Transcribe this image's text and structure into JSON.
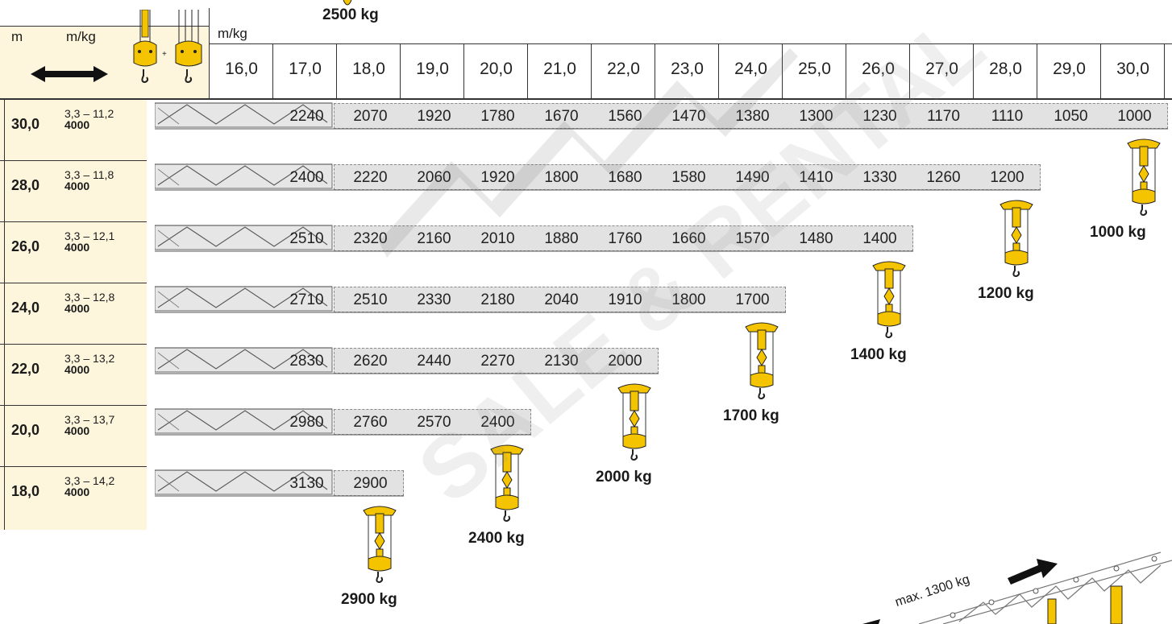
{
  "header": {
    "col_m": "m",
    "col_mkg": "m/kg",
    "plus": "+",
    "radius_unit": "m/kg",
    "radii": [
      "16,0",
      "17,0",
      "18,0",
      "19,0",
      "20,0",
      "21,0",
      "22,0",
      "23,0",
      "24,0",
      "25,0",
      "26,0",
      "27,0",
      "28,0",
      "29,0",
      "30,0"
    ]
  },
  "top_label": "2500 kg",
  "rows": [
    {
      "length": "30,0",
      "range": "3,3 – 11,2",
      "max": "4000",
      "loads": [
        "2240",
        "2070",
        "1920",
        "1780",
        "1670",
        "1560",
        "1470",
        "1380",
        "1300",
        "1230",
        "1170",
        "1110",
        "1050",
        "1000"
      ]
    },
    {
      "length": "28,0",
      "range": "3,3 – 11,8",
      "max": "4000",
      "loads": [
        "2400",
        "2220",
        "2060",
        "1920",
        "1800",
        "1680",
        "1580",
        "1490",
        "1410",
        "1330",
        "1260",
        "1200"
      ]
    },
    {
      "length": "26,0",
      "range": "3,3 – 12,1",
      "max": "4000",
      "loads": [
        "2510",
        "2320",
        "2160",
        "2010",
        "1880",
        "1760",
        "1660",
        "1570",
        "1480",
        "1400"
      ]
    },
    {
      "length": "24,0",
      "range": "3,3 – 12,8",
      "max": "4000",
      "loads": [
        "2710",
        "2510",
        "2330",
        "2180",
        "2040",
        "1910",
        "1800",
        "1700"
      ]
    },
    {
      "length": "22,0",
      "range": "3,3 – 13,2",
      "max": "4000",
      "loads": [
        "2830",
        "2620",
        "2440",
        "2270",
        "2130",
        "2000"
      ]
    },
    {
      "length": "20,0",
      "range": "3,3 – 13,7",
      "max": "4000",
      "loads": [
        "2980",
        "2760",
        "2570",
        "2400"
      ]
    },
    {
      "length": "18,0",
      "range": "3,3 – 14,2",
      "max": "4000",
      "loads": [
        "3130",
        "2900"
      ]
    }
  ],
  "end_weights": [
    "1000 kg",
    "1200 kg",
    "1400 kg",
    "1700 kg",
    "2000 kg",
    "2400 kg",
    "2900 kg"
  ],
  "trolley_note": "max. 1300 kg",
  "watermark_text": "SALE & RENTAL",
  "colors": {
    "hook_yellow": "#f5c400",
    "cream": "#fdf6dc",
    "jib_grey": "#e2e2e2"
  }
}
